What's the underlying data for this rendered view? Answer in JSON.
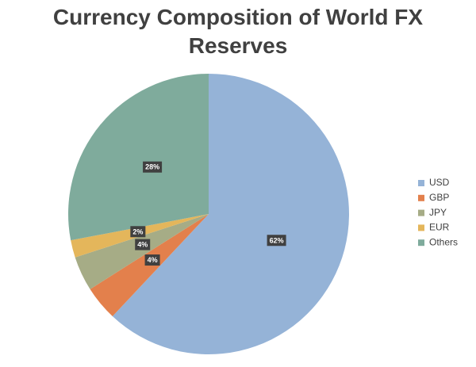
{
  "chart_data": {
    "type": "pie",
    "title": "Currency Composition of World FX Reserves",
    "categories": [
      "USD",
      "GBP",
      "JPY",
      "EUR",
      "Others"
    ],
    "values": [
      62,
      4,
      4,
      2,
      28
    ],
    "value_labels": [
      "62%",
      "4%",
      "4%",
      "2%",
      "28%"
    ],
    "colors": [
      "#95b3d7",
      "#e3804c",
      "#a6ac86",
      "#e4b65b",
      "#7fab9c"
    ],
    "legend": "right"
  }
}
